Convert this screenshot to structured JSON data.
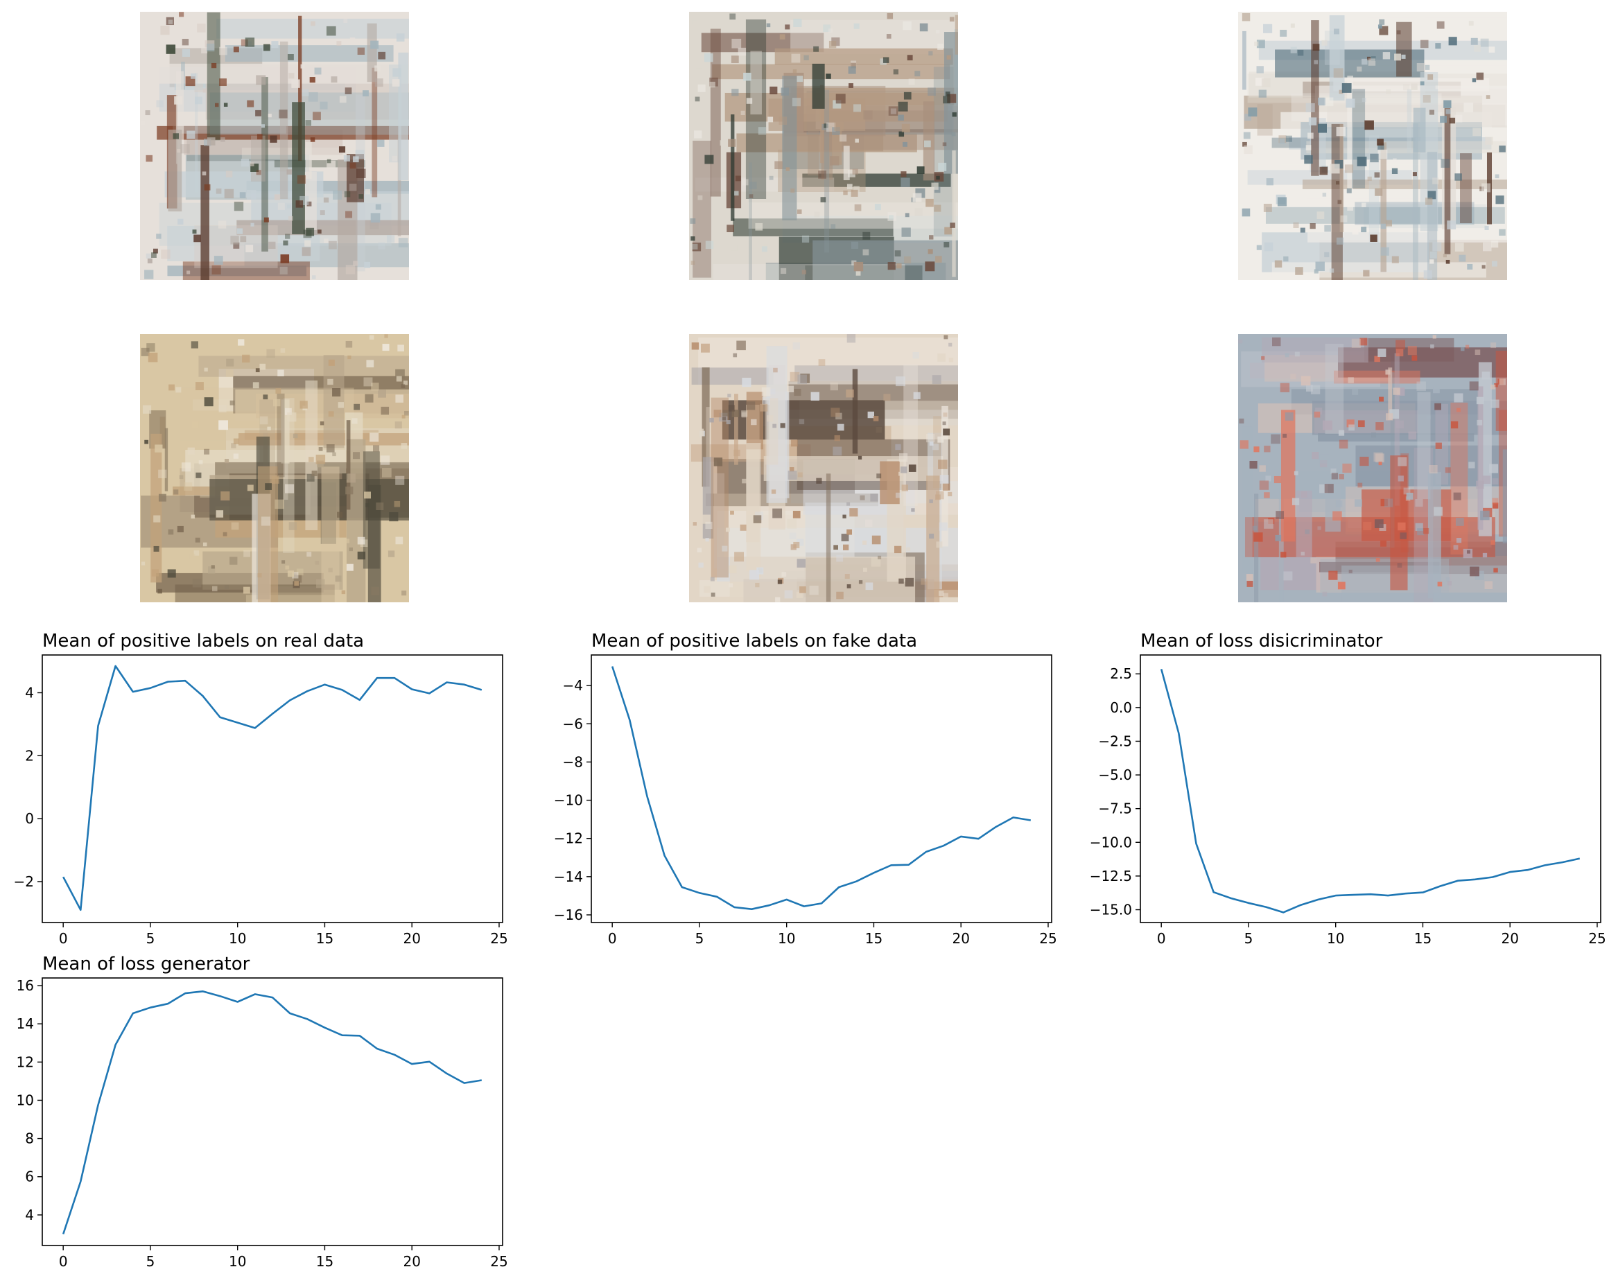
{
  "images": [
    {
      "name": "generated-painting-1",
      "palette": [
        "#e6e0da",
        "#b4aaa3",
        "#7a3b22",
        "#a3b5bd",
        "#d7cbc3",
        "#5a3a2e",
        "#c7d1d6",
        "#3e4a3a"
      ]
    },
    {
      "name": "generated-painting-2",
      "palette": [
        "#ddd8cf",
        "#6b4a3d",
        "#c9d7d8",
        "#2e3a32",
        "#a88f7c",
        "#e9e5df",
        "#86949a",
        "#b49a82"
      ]
    },
    {
      "name": "generated-painting-3",
      "palette": [
        "#f0ede8",
        "#c8d2d8",
        "#7f9aa6",
        "#5a3a2c",
        "#e2ddd5",
        "#a9b9c2",
        "#b8a594",
        "#4d6a78"
      ]
    },
    {
      "name": "generated-painting-4",
      "palette": [
        "#d9c7a4",
        "#c2a27a",
        "#efe9df",
        "#6f5d48",
        "#b7a68b",
        "#8a7a63",
        "#e3d8c2",
        "#4e4a3c"
      ]
    },
    {
      "name": "generated-painting-5",
      "palette": [
        "#e2d6c6",
        "#c7a789",
        "#d8dbe0",
        "#7e6b58",
        "#b68c6a",
        "#5b4a3e",
        "#eae3da",
        "#a9a5a8"
      ]
    },
    {
      "name": "generated-painting-6",
      "palette": [
        "#a7b3be",
        "#c3c9d0",
        "#8d9aa8",
        "#c8553f",
        "#e0765e",
        "#b3a9b6",
        "#7c5a5c",
        "#d9c2b8"
      ]
    }
  ],
  "colors": {
    "line": "#1f77b4",
    "axis": "#000000",
    "background": "#ffffff"
  },
  "chart_data": [
    {
      "type": "line",
      "title": "Mean of positive labels on real data",
      "x": [
        0,
        1,
        2,
        3,
        4,
        5,
        6,
        7,
        8,
        9,
        10,
        11,
        12,
        13,
        14,
        15,
        16,
        17,
        18,
        19,
        20,
        21,
        22,
        23,
        24
      ],
      "series": [
        {
          "values": [
            -1.85,
            -2.9,
            2.95,
            4.85,
            4.03,
            4.15,
            4.35,
            4.38,
            3.9,
            3.22,
            3.05,
            2.88,
            3.33,
            3.76,
            4.05,
            4.26,
            4.09,
            3.77,
            4.47,
            4.47,
            4.11,
            3.98,
            4.33,
            4.26,
            4.09
          ]
        }
      ],
      "xlim": [
        -1.2,
        25.2
      ],
      "ylim": [
        -3.3,
        5.2
      ],
      "xticks": [
        0,
        5,
        10,
        15,
        20,
        25
      ],
      "yticks": [
        -2,
        0,
        2,
        4
      ],
      "ytick_labels": [
        "−2",
        "0",
        "2",
        "4"
      ]
    },
    {
      "type": "line",
      "title": "Mean of positive labels on fake data",
      "x": [
        0,
        1,
        2,
        3,
        4,
        5,
        6,
        7,
        8,
        9,
        10,
        11,
        12,
        13,
        14,
        15,
        16,
        17,
        18,
        19,
        20,
        21,
        22,
        23,
        24
      ],
      "series": [
        {
          "values": [
            -3.0,
            -5.8,
            -9.8,
            -12.9,
            -14.55,
            -14.85,
            -15.05,
            -15.6,
            -15.7,
            -15.5,
            -15.2,
            -15.55,
            -15.4,
            -14.55,
            -14.25,
            -13.8,
            -13.4,
            -13.38,
            -12.7,
            -12.38,
            -11.9,
            -12.02,
            -11.4,
            -10.9,
            -11.05
          ]
        }
      ],
      "xlim": [
        -1.2,
        25.2
      ],
      "ylim": [
        -16.4,
        -2.4
      ],
      "xticks": [
        0,
        5,
        10,
        15,
        20,
        25
      ],
      "yticks": [
        -16,
        -14,
        -12,
        -10,
        -8,
        -6,
        -4
      ],
      "ytick_labels": [
        "−16",
        "−14",
        "−12",
        "−10",
        "−8",
        "−6",
        "−4"
      ]
    },
    {
      "type": "line",
      "title": "Mean of loss disicriminator",
      "x": [
        0,
        1,
        2,
        3,
        4,
        5,
        6,
        7,
        8,
        9,
        10,
        11,
        12,
        13,
        14,
        15,
        16,
        17,
        18,
        19,
        20,
        21,
        22,
        23,
        24
      ],
      "series": [
        {
          "values": [
            2.85,
            -1.9,
            -10.1,
            -13.7,
            -14.15,
            -14.5,
            -14.8,
            -15.2,
            -14.65,
            -14.25,
            -13.95,
            -13.9,
            -13.85,
            -13.95,
            -13.8,
            -13.72,
            -13.25,
            -12.85,
            -12.75,
            -12.58,
            -12.2,
            -12.05,
            -11.7,
            -11.48,
            -11.2
          ]
        }
      ],
      "xlim": [
        -1.2,
        25.2
      ],
      "ylim": [
        -15.95,
        3.9
      ],
      "xticks": [
        0,
        5,
        10,
        15,
        20,
        25
      ],
      "yticks": [
        -15,
        -12.5,
        -10,
        -7.5,
        -5,
        -2.5,
        0,
        2.5
      ],
      "ytick_labels": [
        "−15.0",
        "−12.5",
        "−10.0",
        "−7.5",
        "−5.0",
        "−2.5",
        "0.0",
        "2.5"
      ]
    },
    {
      "type": "line",
      "title": "Mean of loss generator",
      "x": [
        0,
        1,
        2,
        3,
        4,
        5,
        6,
        7,
        8,
        9,
        10,
        11,
        12,
        13,
        14,
        15,
        16,
        17,
        18,
        19,
        20,
        21,
        22,
        23,
        24
      ],
      "series": [
        {
          "values": [
            3.0,
            5.75,
            9.75,
            12.9,
            14.55,
            14.85,
            15.05,
            15.6,
            15.7,
            15.45,
            15.15,
            15.55,
            15.38,
            14.55,
            14.25,
            13.8,
            13.4,
            13.38,
            12.7,
            12.38,
            11.9,
            12.02,
            11.4,
            10.9,
            11.05
          ]
        }
      ],
      "xlim": [
        -1.2,
        25.2
      ],
      "ylim": [
        2.4,
        16.4
      ],
      "xticks": [
        0,
        5,
        10,
        15,
        20,
        25
      ],
      "yticks": [
        4,
        6,
        8,
        10,
        12,
        14,
        16
      ],
      "ytick_labels": [
        "4",
        "6",
        "8",
        "10",
        "12",
        "14",
        "16"
      ]
    }
  ]
}
